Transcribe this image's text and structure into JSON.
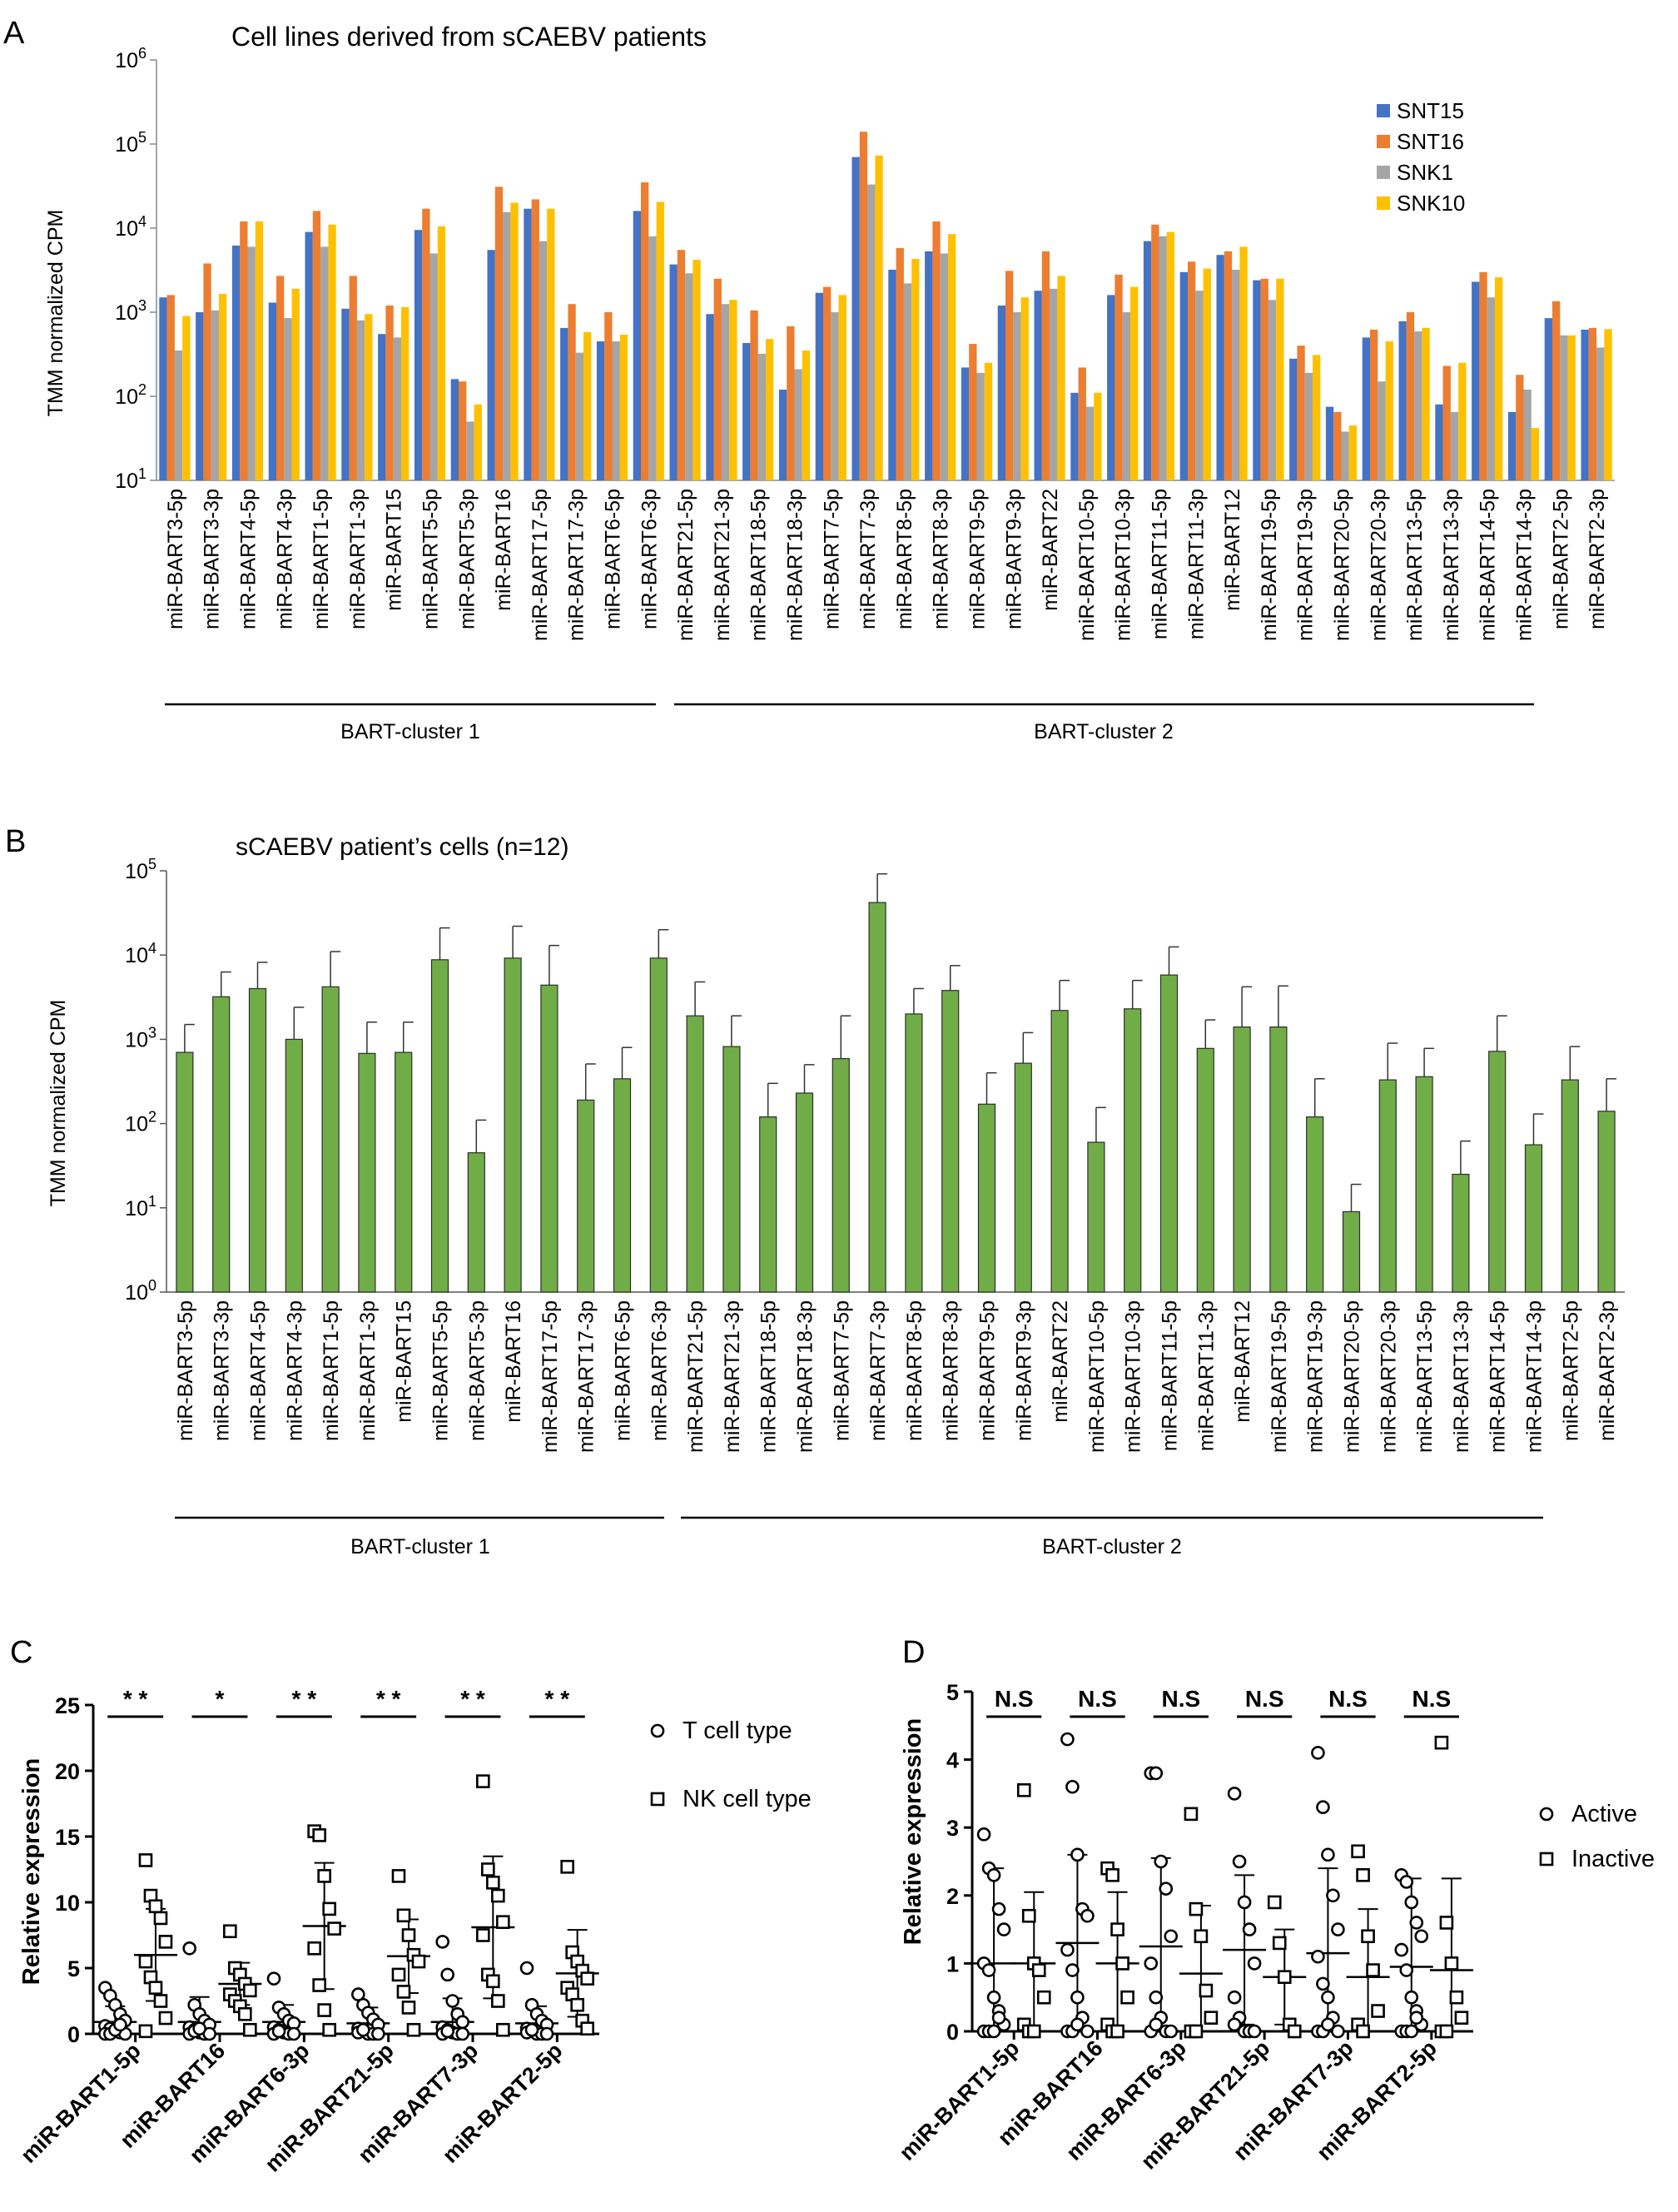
{
  "colors": {
    "SNT15": "#4472C4",
    "SNT16": "#ED7D31",
    "SNK1": "#A5A5A5",
    "SNK10": "#FFC000",
    "green": "#70AD47"
  },
  "chart_data": [
    {
      "panel": "A",
      "type": "bar",
      "title": "Cell lines derived from sCAEBV patients",
      "ylabel": "TMM normalized CPM",
      "yscale": "log",
      "ylim": [
        10,
        1000000
      ],
      "ytick_exponents": [
        "1",
        "2",
        "3",
        "4",
        "5",
        "6"
      ],
      "categories": [
        "miR-BART3-5p",
        "miR-BART3-3p",
        "miR-BART4-5p",
        "miR-BART4-3p",
        "miR-BART1-5p",
        "miR-BART1-3p",
        "miR-BART15",
        "miR-BART5-5p",
        "miR-BART5-3p",
        "miR-BART16",
        "miR-BART17-5p",
        "miR-BART17-3p",
        "miR-BART6-5p",
        "miR-BART6-3p",
        "miR-BART21-5p",
        "miR-BART21-3p",
        "miR-BART18-5p",
        "miR-BART18-3p",
        "miR-BART7-5p",
        "miR-BART7-3p",
        "miR-BART8-5p",
        "miR-BART8-3p",
        "miR-BART9-5p",
        "miR-BART9-3p",
        "miR-BART22",
        "miR-BART10-5p",
        "miR-BART10-3p",
        "miR-BART11-5p",
        "miR-BART11-3p",
        "miR-BART12",
        "miR-BART19-5p",
        "miR-BART19-3p",
        "miR-BART20-5p",
        "miR-BART20-3p",
        "miR-BART13-5p",
        "miR-BART13-3p",
        "miR-BART14-5p",
        "miR-BART14-3p",
        "miR-BART2-5p",
        "miR-BART2-3p"
      ],
      "series": [
        {
          "name": "SNT15",
          "values": [
            1500,
            1000,
            6200,
            1300,
            9000,
            1100,
            550,
            9500,
            160,
            5500,
            17000,
            650,
            450,
            16000,
            3700,
            950,
            430,
            120,
            1700,
            70000,
            3200,
            5300,
            220,
            1200,
            1800,
            110,
            1600,
            7000,
            3000,
            4800,
            2400,
            280,
            75,
            500,
            780,
            80,
            2300,
            65,
            850,
            620
          ]
        },
        {
          "name": "SNT16",
          "values": [
            1600,
            3800,
            12000,
            2700,
            16000,
            2700,
            1200,
            17000,
            150,
            31000,
            22000,
            1250,
            1000,
            35000,
            5500,
            2500,
            1050,
            680,
            2000,
            140000,
            5800,
            12000,
            420,
            3100,
            5300,
            220,
            2800,
            11000,
            4000,
            5300,
            2500,
            400,
            65,
            620,
            1000,
            230,
            3000,
            180,
            1350,
            650
          ]
        },
        {
          "name": "SNK1",
          "values": [
            350,
            1050,
            6000,
            850,
            6000,
            800,
            500,
            5000,
            50,
            15500,
            7000,
            330,
            450,
            8000,
            2900,
            1250,
            320,
            210,
            1000,
            33000,
            2200,
            5000,
            190,
            1000,
            1900,
            75,
            1000,
            8000,
            1800,
            3200,
            1400,
            190,
            38,
            150,
            590,
            65,
            1500,
            120,
            530,
            380
          ]
        },
        {
          "name": "SNK10",
          "values": [
            900,
            1650,
            12000,
            1900,
            11000,
            950,
            1150,
            10500,
            80,
            20000,
            17000,
            580,
            540,
            20500,
            4200,
            1400,
            480,
            350,
            1600,
            73000,
            4300,
            8500,
            250,
            1500,
            2700,
            110,
            2000,
            9000,
            3300,
            6000,
            2500,
            310,
            45,
            450,
            650,
            250,
            2600,
            42,
            530,
            630
          ]
        }
      ],
      "legend_position": "top-right",
      "group_labels": [
        "BART-cluster 1",
        "BART-cluster 2"
      ]
    },
    {
      "panel": "B",
      "type": "bar",
      "title": "sCAEBV patient’s cells (n=12)",
      "ylabel": "TMM normalized CPM",
      "yscale": "log",
      "ylim": [
        1,
        100000
      ],
      "ytick_exponents": [
        "0",
        "1",
        "2",
        "3",
        "4",
        "5"
      ],
      "categories": [
        "miR-BART3-5p",
        "miR-BART3-3p",
        "miR-BART4-5p",
        "miR-BART4-3p",
        "miR-BART1-5p",
        "miR-BART1-3p",
        "miR-BART15",
        "miR-BART5-5p",
        "miR-BART5-3p",
        "miR-BART16",
        "miR-BART17-5p",
        "miR-BART17-3p",
        "miR-BART6-5p",
        "miR-BART6-3p",
        "miR-BART21-5p",
        "miR-BART21-3p",
        "miR-BART18-5p",
        "miR-BART18-3p",
        "miR-BART7-5p",
        "miR-BART7-3p",
        "miR-BART8-5p",
        "miR-BART8-3p",
        "miR-BART9-5p",
        "miR-BART9-3p",
        "miR-BART22",
        "miR-BART10-5p",
        "miR-BART10-3p",
        "miR-BART11-5p",
        "miR-BART11-3p",
        "miR-BART12",
        "miR-BART19-5p",
        "miR-BART19-3p",
        "miR-BART20-5p",
        "miR-BART20-3p",
        "miR-BART13-5p",
        "miR-BART13-3p",
        "miR-BART14-5p",
        "miR-BART14-3p",
        "miR-BART2-5p",
        "miR-BART2-3p"
      ],
      "values": [
        700,
        3200,
        4000,
        1000,
        4200,
        680,
        700,
        8800,
        45,
        9200,
        4400,
        190,
        340,
        9200,
        1900,
        820,
        120,
        230,
        590,
        42000,
        2000,
        3800,
        170,
        520,
        2200,
        60,
        2300,
        5800,
        780,
        1400,
        1400,
        120,
        9,
        330,
        360,
        25,
        720,
        56,
        330,
        140
      ],
      "error_upper": [
        1500,
        6300,
        8200,
        2400,
        11000,
        1600,
        1600,
        21000,
        110,
        22000,
        13000,
        510,
        800,
        20000,
        4800,
        1900,
        300,
        500,
        1900,
        92000,
        4000,
        7500,
        400,
        1200,
        5000,
        155,
        5000,
        12500,
        1700,
        4200,
        4300,
        340,
        19,
        900,
        780,
        62,
        1900,
        130,
        820,
        340
      ],
      "group_labels": [
        "BART-cluster 1",
        "BART-cluster 2"
      ]
    },
    {
      "panel": "C",
      "type": "scatter",
      "ylabel": "Relative expression",
      "ylim": [
        0,
        25
      ],
      "yticks": [
        "0",
        "5",
        "10",
        "15",
        "20",
        "25"
      ],
      "categories": [
        "miR-BART1-5p",
        "miR-BART16",
        "miR-BART6-3p",
        "miR-BART21-5p",
        "miR-BART7-3p",
        "miR-BART2-5p"
      ],
      "significance": [
        "* *",
        "*",
        "* *",
        "* *",
        "* *",
        "* *"
      ],
      "legend": [
        "T cell type",
        "NK cell type"
      ],
      "series": [
        {
          "name": "T cell type",
          "mean": [
            0.9,
            0.9,
            0.9,
            0.8,
            0.9,
            0.8
          ],
          "sd": [
            1.2,
            1.9,
            1.3,
            1.2,
            1.8,
            1.3
          ],
          "points": [
            [
              3.5,
              2.9,
              2.2,
              1.5,
              1,
              0.6,
              0.4,
              0.2,
              0.1,
              0,
              0,
              0,
              0.3,
              0.7
            ],
            [
              6.5,
              2.2,
              1.5,
              1,
              0.7,
              0.5,
              0.3,
              0.1,
              0,
              0,
              0,
              0.2,
              0.4
            ],
            [
              4.2,
              2,
              1.5,
              1,
              0.8,
              0.5,
              0.3,
              0.1,
              0,
              0,
              0,
              0.2
            ],
            [
              3,
              2.2,
              1.6,
              1.1,
              0.7,
              0.4,
              0.2,
              0,
              0,
              0,
              0.1,
              0.3
            ],
            [
              7,
              4.5,
              2.5,
              1.5,
              0.9,
              0.5,
              0.3,
              0.1,
              0,
              0,
              0,
              0.2
            ],
            [
              5,
              2.2,
              1.5,
              1,
              0.7,
              0.4,
              0.2,
              0,
              0,
              0,
              0.1,
              0.3
            ]
          ]
        },
        {
          "name": "NK cell type",
          "mean": [
            6,
            3.8,
            8.2,
            5.9,
            8.1,
            4.6
          ],
          "sd": [
            3.5,
            1.6,
            4.8,
            2.8,
            5.4,
            3.3
          ],
          "points": [
            [
              13.2,
              10.5,
              9.7,
              8.8,
              7,
              5.5,
              4.3,
              3.5,
              2.5,
              1.2,
              0.2
            ],
            [
              7.8,
              5,
              4.5,
              3.8,
              3.3,
              3,
              2.5,
              2.1,
              1.5,
              0.3
            ],
            [
              15.4,
              15.1,
              12,
              9.5,
              8,
              6.5,
              3.7,
              1.8,
              0.3
            ],
            [
              12,
              9,
              7.5,
              6,
              5.5,
              4.5,
              3.2,
              2,
              0.3
            ],
            [
              19.2,
              12.5,
              11.5,
              10.5,
              8.5,
              7.5,
              4.5,
              4,
              2.5,
              0.3
            ],
            [
              12.7,
              6.2,
              5.5,
              4.8,
              4.2,
              3.5,
              3,
              2.2,
              1,
              0.4
            ]
          ]
        }
      ]
    },
    {
      "panel": "D",
      "type": "scatter",
      "ylabel": "Relative expression",
      "ylim": [
        0,
        5
      ],
      "yticks": [
        "0",
        "1",
        "2",
        "3",
        "4",
        "5"
      ],
      "categories": [
        "miR-BART1-5p",
        "miR-BART16",
        "miR-BART6-3p",
        "miR-BART21-5p",
        "miR-BART7-3p",
        "miR-BART2-5p"
      ],
      "significance": [
        "N.S",
        "N.S",
        "N.S",
        "N.S",
        "N.S",
        "N.S"
      ],
      "legend": [
        "Active",
        "Inactive"
      ],
      "series": [
        {
          "name": "Active",
          "mean": [
            1,
            1.3,
            1.25,
            1.2,
            1.15,
            0.95
          ],
          "sd": [
            1.4,
            1.3,
            1.3,
            1.1,
            1.25,
            1.3
          ],
          "points": [
            [
              2.9,
              2.4,
              2.3,
              1.8,
              1.5,
              1,
              0.9,
              0.5,
              0.3,
              0.1,
              0,
              0,
              0,
              0.2
            ],
            [
              4.3,
              3.6,
              2.6,
              1.8,
              1.7,
              1.2,
              0.9,
              0.5,
              0.2,
              0,
              0,
              0,
              0.1
            ],
            [
              3.8,
              3.8,
              2.5,
              2.1,
              1.4,
              1,
              0.5,
              0.2,
              0,
              0,
              0,
              0.1
            ],
            [
              3.5,
              2.5,
              1.9,
              1.5,
              1,
              0.5,
              0.2,
              0,
              0,
              0,
              0.1
            ],
            [
              4.1,
              3.3,
              2.6,
              2,
              1.5,
              1.1,
              0.7,
              0.5,
              0.2,
              0,
              0,
              0,
              0.1
            ],
            [
              2.3,
              2.2,
              1.9,
              1.6,
              1.4,
              1.2,
              0.9,
              0.5,
              0.3,
              0.1,
              0,
              0,
              0,
              0.2
            ]
          ]
        },
        {
          "name": "Inactive",
          "mean": [
            1,
            1,
            0.85,
            0.8,
            0.8,
            0.9
          ],
          "sd": [
            1.05,
            1.05,
            1,
            0.7,
            1,
            1.35
          ],
          "points": [
            [
              3.55,
              1.7,
              1,
              0.9,
              0.5,
              0.1,
              0,
              0
            ],
            [
              2.4,
              2.3,
              1.5,
              1,
              0.5,
              0.1,
              0,
              0
            ],
            [
              3.2,
              1.8,
              1.4,
              0.6,
              0.2,
              0,
              0
            ],
            [
              1.9,
              1.3,
              0.8,
              0.1,
              0
            ],
            [
              2.65,
              2.3,
              1.4,
              0.9,
              0.3,
              0.1,
              0
            ],
            [
              4.25,
              1.6,
              1,
              0.5,
              0.2,
              0,
              0
            ]
          ]
        }
      ]
    }
  ]
}
